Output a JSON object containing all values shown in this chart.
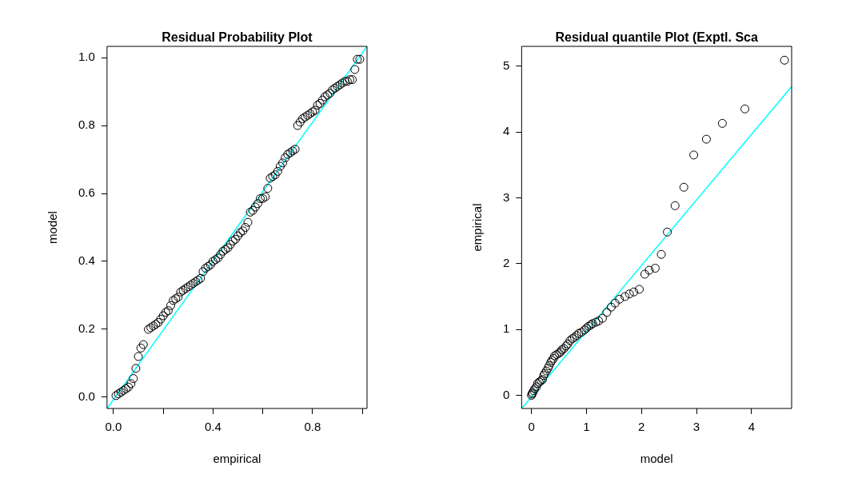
{
  "chart_data": [
    {
      "type": "scatter",
      "title": "Residual Probability Plot",
      "xlabel": "empirical",
      "ylabel": "model",
      "xlim": [
        -0.026,
        1.019
      ],
      "ylim": [
        -0.033,
        1.033
      ],
      "xticks": [
        {
          "value": 0,
          "label": "0.0"
        },
        {
          "value": 0.2,
          "label": null
        },
        {
          "value": 0.4,
          "label": "0.4"
        },
        {
          "value": 0.6,
          "label": null
        },
        {
          "value": 0.8,
          "label": "0.8"
        },
        {
          "value": 1,
          "label": null
        }
      ],
      "yticks": [
        {
          "value": 0,
          "label": "0.0"
        },
        {
          "value": 0.2,
          "label": "0.2"
        },
        {
          "value": 0.4,
          "label": "0.4"
        },
        {
          "value": 0.6,
          "label": "0.6"
        },
        {
          "value": 0.8,
          "label": "0.8"
        },
        {
          "value": 1,
          "label": "1.0"
        }
      ],
      "grid": false,
      "legend": false,
      "series": [
        {
          "marker": "circle",
          "color": "#000000",
          "x": [
            0.01,
            0.02,
            0.03,
            0.04,
            0.05,
            0.06,
            0.07,
            0.08,
            0.09,
            0.1,
            0.11,
            0.12,
            0.14,
            0.15,
            0.16,
            0.17,
            0.18,
            0.19,
            0.2,
            0.21,
            0.22,
            0.23,
            0.24,
            0.25,
            0.26,
            0.27,
            0.28,
            0.29,
            0.3,
            0.31,
            0.32,
            0.33,
            0.34,
            0.35,
            0.36,
            0.37,
            0.38,
            0.39,
            0.4,
            0.41,
            0.42,
            0.43,
            0.44,
            0.45,
            0.46,
            0.47,
            0.48,
            0.49,
            0.5,
            0.51,
            0.52,
            0.53,
            0.54,
            0.55,
            0.56,
            0.57,
            0.58,
            0.59,
            0.6,
            0.61,
            0.62,
            0.63,
            0.64,
            0.65,
            0.66,
            0.67,
            0.68,
            0.69,
            0.7,
            0.71,
            0.72,
            0.73,
            0.74,
            0.75,
            0.76,
            0.77,
            0.78,
            0.79,
            0.8,
            0.81,
            0.82,
            0.83,
            0.84,
            0.85,
            0.86,
            0.87,
            0.88,
            0.89,
            0.9,
            0.91,
            0.92,
            0.93,
            0.94,
            0.95,
            0.96,
            0.97,
            0.98,
            0.99
          ],
          "values": [
            0.005,
            0.01,
            0.015,
            0.02,
            0.025,
            0.03,
            0.04,
            0.055,
            0.085,
            0.12,
            0.145,
            0.155,
            0.2,
            0.205,
            0.21,
            0.215,
            0.22,
            0.23,
            0.24,
            0.25,
            0.255,
            0.27,
            0.285,
            0.29,
            0.295,
            0.31,
            0.315,
            0.32,
            0.325,
            0.33,
            0.335,
            0.34,
            0.345,
            0.35,
            0.37,
            0.38,
            0.385,
            0.39,
            0.4,
            0.405,
            0.41,
            0.42,
            0.43,
            0.435,
            0.44,
            0.45,
            0.46,
            0.465,
            0.475,
            0.485,
            0.49,
            0.5,
            0.515,
            0.545,
            0.55,
            0.56,
            0.57,
            0.585,
            0.585,
            0.59,
            0.615,
            0.645,
            0.65,
            0.655,
            0.665,
            0.68,
            0.69,
            0.705,
            0.715,
            0.72,
            0.725,
            0.73,
            0.8,
            0.81,
            0.82,
            0.825,
            0.83,
            0.835,
            0.84,
            0.845,
            0.86,
            0.865,
            0.875,
            0.885,
            0.89,
            0.895,
            0.905,
            0.91,
            0.915,
            0.92,
            0.925,
            0.93,
            0.93,
            0.935,
            0.935,
            0.965,
            0.995,
            0.995
          ]
        },
        {
          "type": "line",
          "marker": "none",
          "color": "#00ffff",
          "x": [
            -0.026,
            1.019
          ],
          "values": [
            -0.033,
            1.033
          ]
        }
      ]
    },
    {
      "type": "scatter",
      "title": "Residual quantile Plot (Exptl. Sca",
      "xlabel": "model",
      "ylabel": "empirical",
      "xlim": [
        -0.18,
        4.73
      ],
      "ylim": [
        -0.2,
        5.3
      ],
      "xticks": [
        0,
        1,
        2,
        3,
        4
      ],
      "yticks": [
        0,
        1,
        2,
        3,
        4,
        5
      ],
      "grid": false,
      "legend": false,
      "series": [
        {
          "marker": "circle",
          "color": "#000000",
          "x": [
            0,
            0.01,
            0.02,
            0.04,
            0.06,
            0.09,
            0.11,
            0.14,
            0.17,
            0.2,
            0.22,
            0.24,
            0.27,
            0.3,
            0.32,
            0.35,
            0.37,
            0.4,
            0.42,
            0.46,
            0.5,
            0.53,
            0.55,
            0.59,
            0.63,
            0.66,
            0.7,
            0.74,
            0.78,
            0.82,
            0.86,
            0.91,
            0.96,
            1,
            1.04,
            1.08,
            1.11,
            1.17,
            1.22,
            1.29,
            1.37,
            1.45,
            1.52,
            1.6,
            1.7,
            1.78,
            1.86,
            1.96,
            2.06,
            2.14,
            2.25,
            2.36,
            2.47,
            2.61,
            2.77,
            2.95,
            3.18,
            3.47,
            3.88,
            4.6
          ],
          "values": [
            0,
            0.02,
            0.04,
            0.07,
            0.1,
            0.13,
            0.18,
            0.2,
            0.22,
            0.24,
            0.3,
            0.33,
            0.37,
            0.41,
            0.45,
            0.5,
            0.53,
            0.56,
            0.6,
            0.62,
            0.64,
            0.66,
            0.69,
            0.71,
            0.75,
            0.78,
            0.83,
            0.86,
            0.88,
            0.91,
            0.94,
            0.96,
            0.99,
            1.02,
            1.05,
            1.07,
            1.09,
            1.11,
            1.13,
            1.17,
            1.26,
            1.34,
            1.4,
            1.46,
            1.5,
            1.54,
            1.57,
            1.61,
            1.84,
            1.9,
            1.93,
            2.14,
            2.48,
            2.88,
            3.16,
            3.65,
            3.89,
            4.13,
            4.35,
            5.09
          ]
        },
        {
          "type": "line",
          "marker": "none",
          "color": "#00ffff",
          "x": [
            -0.18,
            4.73
          ],
          "values": [
            -0.2,
            4.69
          ]
        }
      ]
    }
  ]
}
